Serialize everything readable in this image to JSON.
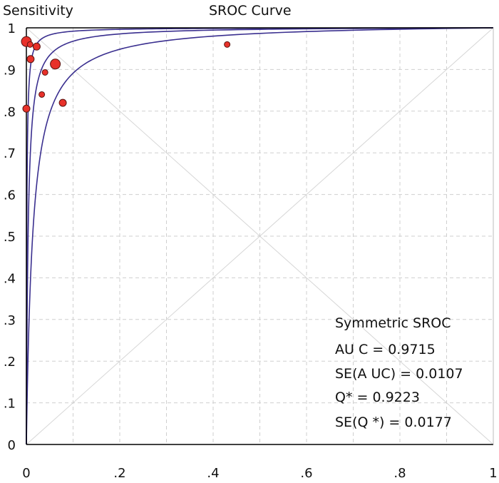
{
  "chart_data": {
    "type": "scatter",
    "title": "SROC Curve",
    "xlabel": "",
    "ylabel": "Sensitivity",
    "xlim": [
      0,
      1
    ],
    "ylim": [
      0,
      1
    ],
    "x_ticks": [
      "0",
      ".2",
      ".4",
      ".6",
      ".8",
      "1"
    ],
    "y_ticks": [
      "0",
      ".1",
      ".2",
      ".3",
      ".4",
      ".5",
      ".6",
      ".7",
      ".8",
      ".9",
      "1"
    ],
    "grid": true,
    "colors": {
      "points": "#e8312a",
      "curves": "#3a2f8f",
      "grid": "#cfcfcf",
      "axis": "#000000"
    },
    "points": [
      {
        "x": 0.0,
        "y": 0.967,
        "size": 7
      },
      {
        "x": 0.008,
        "y": 0.96,
        "size": 4
      },
      {
        "x": 0.022,
        "y": 0.955,
        "size": 5
      },
      {
        "x": 0.009,
        "y": 0.925,
        "size": 5
      },
      {
        "x": 0.04,
        "y": 0.893,
        "size": 4
      },
      {
        "x": 0.062,
        "y": 0.913,
        "size": 7
      },
      {
        "x": 0.033,
        "y": 0.84,
        "size": 4
      },
      {
        "x": 0.078,
        "y": 0.82,
        "size": 5
      },
      {
        "x": 0.0,
        "y": 0.806,
        "size": 5
      },
      {
        "x": 0.43,
        "y": 0.96,
        "size": 4
      }
    ],
    "curves_logDOR": [
      7.0,
      5.6,
      4.3
    ],
    "stats": {
      "heading": "Symmetric SROC",
      "auc": "AU C = 0.9715",
      "se_auc": "SE(A UC)  = 0.0107",
      "q": "Q* = 0.9223",
      "se_q": "SE(Q *) = 0.0177"
    }
  }
}
